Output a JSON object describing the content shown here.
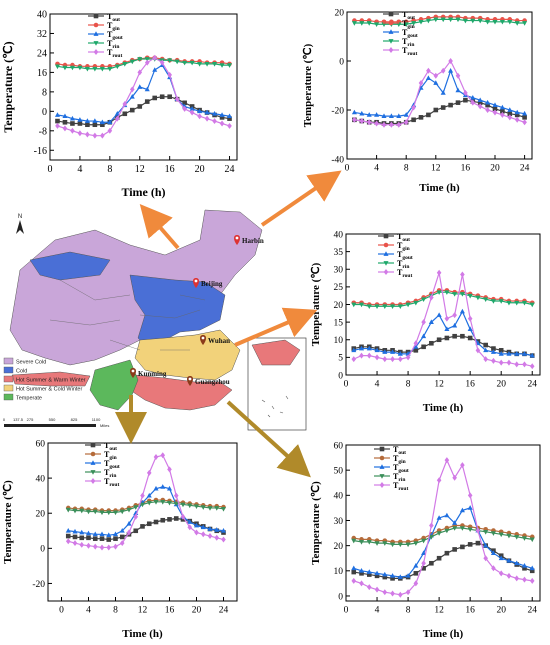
{
  "colors": {
    "series": [
      "#404040",
      "#e8534a",
      "#1f6fe0",
      "#1fa86b",
      "#d27ae6"
    ],
    "series_b": [
      "#404040",
      "#b56b3a",
      "#1f6fe0",
      "#3b8f5a",
      "#d27ae6"
    ],
    "arrow": "#f08a3c",
    "arrow_b": "#b08a2a",
    "severe_cold": "#c9a6d9",
    "cold": "#4a6fd6",
    "hsww": "#e8787a",
    "hscw": "#f2d27a",
    "temperate": "#5cb85c",
    "pin": "#d33"
  },
  "legend_labels": [
    {
      "base": "T",
      "sub": "out"
    },
    {
      "base": "T",
      "sub": "gin"
    },
    {
      "base": "T",
      "sub": "gout"
    },
    {
      "base": "T",
      "sub": "rin"
    },
    {
      "base": "T",
      "sub": "rout"
    }
  ],
  "map": {
    "legend": [
      {
        "label": "Severe Cold",
        "color_key": "severe_cold"
      },
      {
        "label": "Cold",
        "color_key": "cold"
      },
      {
        "label": "Hot Summer & Warm Winter",
        "color_key": "hsww"
      },
      {
        "label": "Hot Summer & Cold Winter",
        "color_key": "hscw"
      },
      {
        "label": "Temperate",
        "color_key": "temperate"
      }
    ],
    "cities": [
      "Harbin",
      "Beijing",
      "Wuhan",
      "Kunming",
      "Guangzhou"
    ],
    "north": "N",
    "scale_labels": [
      "0",
      "137.5",
      "275",
      "550",
      "825",
      "1100"
    ],
    "scale_unit": "Miles"
  },
  "chart_data": [
    {
      "id": "beijing",
      "type": "line",
      "xlabel": "Time (h)",
      "ylabel": "Temperature (℃)",
      "xlim": [
        0,
        25
      ],
      "ylim": [
        -20,
        40
      ],
      "xticks": [
        0,
        4,
        8,
        12,
        16,
        20,
        24
      ],
      "yticks": [
        -16,
        -8,
        0,
        8,
        16,
        24,
        32,
        40
      ],
      "x": [
        1,
        2,
        3,
        4,
        5,
        6,
        7,
        8,
        9,
        10,
        11,
        12,
        13,
        14,
        15,
        16,
        17,
        18,
        19,
        20,
        21,
        22,
        23,
        24
      ],
      "series": [
        {
          "name": "Tout",
          "marker": "square",
          "values": [
            -4,
            -4.5,
            -5,
            -5,
            -5.5,
            -5.5,
            -5.5,
            -4.5,
            -2.5,
            -1,
            0.5,
            2,
            4,
            5.5,
            6,
            6,
            5,
            3.5,
            2,
            0.5,
            -0.5,
            -1.5,
            -2.5,
            -3
          ]
        },
        {
          "name": "Tgin",
          "marker": "circle",
          "values": [
            19.5,
            19,
            19,
            18.5,
            18.5,
            18.5,
            18.5,
            18.5,
            19,
            20,
            21,
            21.5,
            22,
            22,
            21.5,
            21,
            21,
            20.5,
            20.5,
            20.5,
            20,
            20,
            20,
            19.5
          ]
        },
        {
          "name": "Tgout",
          "marker": "triangle",
          "values": [
            -1.5,
            -2,
            -3,
            -3.5,
            -4,
            -4,
            -4.5,
            -4.5,
            -1,
            2.5,
            6,
            10,
            9,
            17,
            19,
            14,
            5,
            2,
            1,
            0,
            -0.5,
            -1,
            -1.5,
            -2
          ]
        },
        {
          "name": "Trin",
          "marker": "triangle-down",
          "values": [
            18.5,
            18,
            18,
            18,
            17.5,
            17.5,
            17.5,
            17.5,
            18.5,
            19.5,
            20.5,
            21.5,
            21.5,
            21.5,
            21,
            21,
            20.5,
            20,
            20,
            19.5,
            19.5,
            19.5,
            19,
            19
          ]
        },
        {
          "name": "Trout",
          "marker": "diamond",
          "values": [
            -6,
            -7,
            -8,
            -9,
            -9.5,
            -10,
            -10,
            -8,
            -3,
            3,
            9,
            16,
            20,
            22,
            20,
            15,
            5,
            1,
            -0.5,
            -2,
            -3,
            -4,
            -5,
            -6
          ]
        }
      ]
    },
    {
      "id": "harbin",
      "type": "line",
      "xlabel": "Time (h)",
      "ylabel": "Temperature (℃)",
      "xlim": [
        0,
        25
      ],
      "ylim": [
        -40,
        20
      ],
      "xticks": [
        0,
        4,
        8,
        12,
        16,
        20,
        24
      ],
      "yticks": [
        -40,
        -20,
        0,
        20
      ],
      "x": [
        1,
        2,
        3,
        4,
        5,
        6,
        7,
        8,
        9,
        10,
        11,
        12,
        13,
        14,
        15,
        16,
        17,
        18,
        19,
        20,
        21,
        22,
        23,
        24
      ],
      "series": [
        {
          "name": "Tout",
          "marker": "square",
          "values": [
            -24,
            -24.5,
            -25,
            -25,
            -25.5,
            -25.5,
            -25.5,
            -25,
            -24,
            -23,
            -22,
            -20,
            -19,
            -18,
            -17,
            -16,
            -16.5,
            -17,
            -18,
            -19.5,
            -20.5,
            -21.5,
            -22,
            -23
          ]
        },
        {
          "name": "Tgin",
          "marker": "circle",
          "values": [
            16.5,
            16.5,
            16.5,
            16,
            16,
            16,
            16,
            16,
            16.5,
            17,
            17.5,
            18,
            18,
            18,
            18,
            17.5,
            17.5,
            17.5,
            17,
            17,
            17,
            17,
            16.5,
            16.5
          ]
        },
        {
          "name": "Tgout",
          "marker": "triangle",
          "values": [
            -21,
            -21.5,
            -22,
            -22,
            -22.5,
            -22.5,
            -22.5,
            -22,
            -18,
            -11,
            -7,
            -9,
            -13,
            -4,
            -12,
            -14,
            -15,
            -16,
            -17,
            -18,
            -19,
            -20,
            -21,
            -21.5
          ]
        },
        {
          "name": "Trin",
          "marker": "triangle-down",
          "values": [
            15.5,
            15.5,
            15.5,
            15,
            15,
            15,
            15,
            15,
            15.5,
            16,
            16.5,
            17,
            17,
            17,
            17,
            16.5,
            16.5,
            16.5,
            16,
            16,
            16,
            16,
            15.5,
            15.5
          ]
        },
        {
          "name": "Trout",
          "marker": "diamond",
          "values": [
            -24,
            -24.5,
            -25,
            -25.5,
            -26,
            -26,
            -26,
            -25,
            -19,
            -9,
            -4,
            -6,
            -4,
            0,
            -6,
            -13,
            -17,
            -18.5,
            -20,
            -21,
            -22,
            -23,
            -24,
            -25
          ]
        }
      ]
    },
    {
      "id": "wuhan",
      "type": "line",
      "xlabel": "Time (h)",
      "ylabel": "Temperature (℃)",
      "xlim": [
        0,
        25
      ],
      "ylim": [
        0,
        40
      ],
      "xticks": [
        0,
        4,
        8,
        12,
        16,
        20,
        24
      ],
      "yticks": [
        0,
        5,
        10,
        15,
        20,
        25,
        30,
        35,
        40
      ],
      "x": [
        1,
        2,
        3,
        4,
        5,
        6,
        7,
        8,
        9,
        10,
        11,
        12,
        13,
        14,
        15,
        16,
        17,
        18,
        19,
        20,
        21,
        22,
        23,
        24
      ],
      "series": [
        {
          "name": "Tout",
          "marker": "square",
          "values": [
            7.5,
            8,
            8,
            7.5,
            7,
            7,
            6.5,
            6.5,
            7,
            8,
            9,
            10,
            10.5,
            11,
            11,
            10.5,
            9.5,
            8.5,
            7.5,
            7,
            6.5,
            6,
            6,
            5.5
          ]
        },
        {
          "name": "Tgin",
          "marker": "circle",
          "values": [
            20.5,
            20.5,
            20,
            20,
            20,
            20,
            20,
            20.5,
            21,
            22,
            23,
            24,
            24,
            23.5,
            23.5,
            23,
            22.5,
            22,
            21.5,
            21.5,
            21,
            21,
            21,
            20.5
          ]
        },
        {
          "name": "Tgout",
          "marker": "triangle",
          "values": [
            7,
            7.5,
            7.5,
            7,
            6.5,
            6.5,
            6,
            6,
            8,
            11,
            15,
            17,
            13,
            14,
            18,
            13,
            9,
            7,
            6.5,
            6,
            6,
            6,
            6,
            5.5
          ]
        },
        {
          "name": "Trin",
          "marker": "triangle-down",
          "values": [
            20,
            20,
            19.5,
            19.5,
            19.5,
            19.5,
            19.5,
            20,
            20.5,
            21.5,
            22.5,
            23.5,
            23.5,
            23,
            23,
            22.5,
            22,
            21.5,
            21,
            21,
            20.5,
            20.5,
            20.5,
            20
          ]
        },
        {
          "name": "Trout",
          "marker": "diamond",
          "values": [
            4.5,
            5.5,
            5.5,
            5,
            4.5,
            4.5,
            4.5,
            5,
            9,
            15,
            22,
            29,
            16,
            17,
            28.5,
            16,
            7,
            4.5,
            4,
            3.5,
            3.5,
            3,
            3,
            2.5
          ]
        }
      ]
    },
    {
      "id": "kunming",
      "type": "line",
      "xlabel": "Time (h)",
      "ylabel": "Temperature (℃)",
      "xlim": [
        -2,
        26
      ],
      "ylim": [
        -30,
        60
      ],
      "xticks": [
        0,
        4,
        8,
        12,
        16,
        20,
        24
      ],
      "yticks": [
        -20,
        0,
        20,
        40,
        60
      ],
      "x": [
        1,
        2,
        3,
        4,
        5,
        6,
        7,
        8,
        9,
        10,
        11,
        12,
        13,
        14,
        15,
        16,
        17,
        18,
        19,
        20,
        21,
        22,
        23,
        24
      ],
      "series": [
        {
          "name": "Tout",
          "marker": "square",
          "values": [
            7,
            6.5,
            6,
            6,
            5.5,
            5.5,
            5,
            5.5,
            6.5,
            8,
            10,
            12.5,
            14,
            15,
            16,
            16.5,
            17,
            16.5,
            15.5,
            14,
            12.5,
            11,
            10,
            9
          ]
        },
        {
          "name": "Tgin",
          "marker": "circle",
          "values": [
            23,
            22.5,
            22.5,
            22,
            22,
            21.5,
            21.5,
            21.5,
            22,
            23,
            24.5,
            26,
            27,
            27.5,
            27.5,
            27,
            26.5,
            26,
            25.5,
            25,
            24.5,
            24,
            24,
            23.5
          ]
        },
        {
          "name": "Tgout",
          "marker": "triangle",
          "values": [
            10,
            9.5,
            9,
            8.5,
            8,
            8,
            7.5,
            8,
            10,
            14,
            20,
            26,
            30,
            34,
            35,
            34,
            25,
            18,
            15,
            13,
            12,
            11,
            10.5,
            10
          ]
        },
        {
          "name": "Trin",
          "marker": "triangle-down",
          "values": [
            22,
            21.5,
            21.5,
            21,
            21,
            20.5,
            20.5,
            20.5,
            21,
            22,
            23.5,
            25,
            26,
            26.5,
            26.5,
            26,
            25.5,
            25,
            24.5,
            24,
            23.5,
            23,
            23,
            22.5
          ]
        },
        {
          "name": "Trout",
          "marker": "diamond",
          "values": [
            4,
            3,
            2,
            1.5,
            1,
            0.5,
            0.5,
            1,
            3,
            9,
            18,
            30,
            43,
            52,
            53,
            45,
            30,
            18,
            12,
            9,
            8,
            7,
            6,
            5
          ]
        }
      ]
    },
    {
      "id": "guangzhou",
      "type": "line",
      "xlabel": "Time (h)",
      "ylabel": "Temperature (℃)",
      "xlim": [
        0,
        25
      ],
      "ylim": [
        -2,
        60
      ],
      "xticks": [
        0,
        4,
        8,
        12,
        16,
        20,
        24
      ],
      "yticks": [
        0,
        10,
        20,
        30,
        40,
        50,
        60
      ],
      "x": [
        1,
        2,
        3,
        4,
        5,
        6,
        7,
        8,
        9,
        10,
        11,
        12,
        13,
        14,
        15,
        16,
        17,
        18,
        19,
        20,
        21,
        22,
        23,
        24
      ],
      "series": [
        {
          "name": "Tout",
          "marker": "square",
          "values": [
            9.5,
            9,
            8.5,
            8,
            7.5,
            7,
            7,
            7.5,
            9,
            11,
            13,
            15,
            17,
            18.5,
            19.5,
            20.5,
            21,
            20,
            18,
            16,
            14,
            12.5,
            11,
            10
          ]
        },
        {
          "name": "Tgin",
          "marker": "circle",
          "values": [
            23,
            22.5,
            22.5,
            22,
            22,
            21.5,
            21.5,
            21.5,
            22,
            23,
            24.5,
            26,
            27,
            28,
            28,
            27.5,
            27,
            26.5,
            26,
            25.5,
            25,
            24.5,
            24,
            23.5
          ]
        },
        {
          "name": "Tgout",
          "marker": "triangle",
          "values": [
            11,
            10,
            9.5,
            9,
            8.5,
            8,
            7.5,
            8,
            12,
            17,
            24,
            31,
            32,
            29,
            34,
            35,
            26,
            20,
            17,
            15,
            14,
            13,
            12,
            11
          ]
        },
        {
          "name": "Trin",
          "marker": "triangle-down",
          "values": [
            22,
            21.5,
            21.5,
            21,
            21,
            20.5,
            20.5,
            20.5,
            21,
            22,
            23.5,
            25,
            26,
            27,
            27,
            26.5,
            26,
            25.5,
            25,
            24.5,
            24,
            23.5,
            23,
            22.5
          ]
        },
        {
          "name": "Trout",
          "marker": "diamond",
          "values": [
            6,
            5,
            3.5,
            2.5,
            1.5,
            1,
            0.5,
            1.5,
            5,
            13,
            28,
            46,
            54,
            47,
            52,
            40,
            26,
            15,
            11,
            9,
            8,
            7,
            6.5,
            6
          ]
        }
      ]
    }
  ]
}
